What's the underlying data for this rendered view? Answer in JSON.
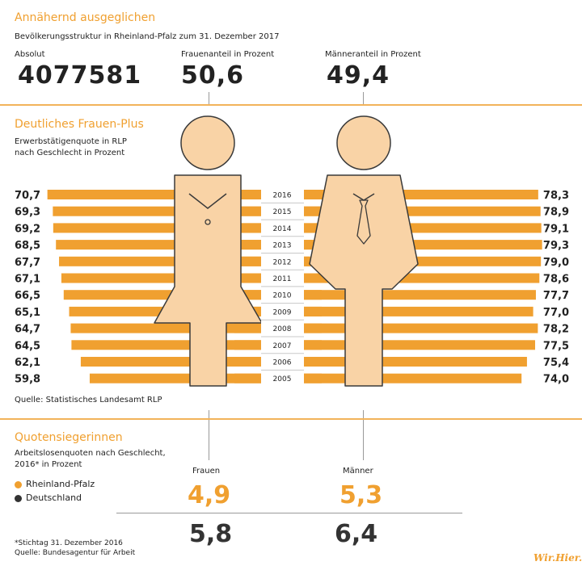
{
  "section1": {
    "title": "Annähernd ausgeglichen",
    "subtitle": "Bevölkerungsstruktur in Rheinland-Pfalz zum 31. Dezember 2017",
    "absolute_label": "Absolut",
    "absolute_value": "4077581",
    "women_label": "Frauenanteil in Prozent",
    "women_value": "50,6",
    "men_label": "Männeranteil in Prozent",
    "men_value": "49,4"
  },
  "section2": {
    "title": "Deutliches Frauen-Plus",
    "subtitle_line1": "Erwerbstätigenquote in RLP",
    "subtitle_line2": "nach Geschlecht in Prozent",
    "source": "Quelle: Statistisches Landesamt RLP"
  },
  "section3": {
    "title": "Quotensiegerinnen",
    "subtitle_line1": "Arbeitslosenquoten nach Geschlecht,",
    "subtitle_line2": "2016* in Prozent",
    "col_women": "Frauen",
    "col_men": "Männer",
    "legend_rlp": "Rheinland-Pfalz",
    "legend_de": "Deutschland",
    "rlp_women": "4,9",
    "rlp_men": "5,3",
    "de_women": "5,8",
    "de_men": "6,4",
    "footnote": "*Stichtag 31. Dezember 2016",
    "source": "Quelle: Bundesagentur für Arbeit"
  },
  "colors": {
    "orange": "#f0a030",
    "skin": "#f9d3a6",
    "outline": "#3a3a3a",
    "dark": "#333333",
    "legend_rlp": "#f0a030",
    "legend_de": "#333333"
  },
  "logo": "Wir.Hier.",
  "chart_data": [
    {
      "type": "bar",
      "orientation": "horizontal-butterfly",
      "categories": [
        "2016",
        "2015",
        "2014",
        "2013",
        "2012",
        "2011",
        "2010",
        "2009",
        "2008",
        "2007",
        "2006",
        "2005"
      ],
      "series": [
        {
          "name": "Frauen",
          "values": [
            70.7,
            69.3,
            69.2,
            68.5,
            67.7,
            67.1,
            66.5,
            65.1,
            64.7,
            64.5,
            62.1,
            59.8
          ],
          "labels": [
            "70,7",
            "69,3",
            "69,2",
            "68,5",
            "67,7",
            "67,1",
            "66,5",
            "65,1",
            "64,7",
            "64,5",
            "62,1",
            "59,8"
          ]
        },
        {
          "name": "Männer",
          "values": [
            78.3,
            78.9,
            79.1,
            79.3,
            79.0,
            78.6,
            77.7,
            77.0,
            78.2,
            77.5,
            75.4,
            74.0
          ],
          "labels": [
            "78,3",
            "78,9",
            "79,1",
            "79,3",
            "79,0",
            "78,6",
            "77,7",
            "77,0",
            "78,2",
            "77,5",
            "75,4",
            "74,0"
          ]
        }
      ],
      "xlim": [
        0,
        100
      ],
      "grid": false
    },
    {
      "type": "table",
      "columns": [
        "Frauen",
        "Männer"
      ],
      "rows": [
        {
          "name": "Rheinland-Pfalz",
          "values": [
            4.9,
            5.3
          ]
        },
        {
          "name": "Deutschland",
          "values": [
            5.8,
            6.4
          ]
        }
      ]
    }
  ]
}
